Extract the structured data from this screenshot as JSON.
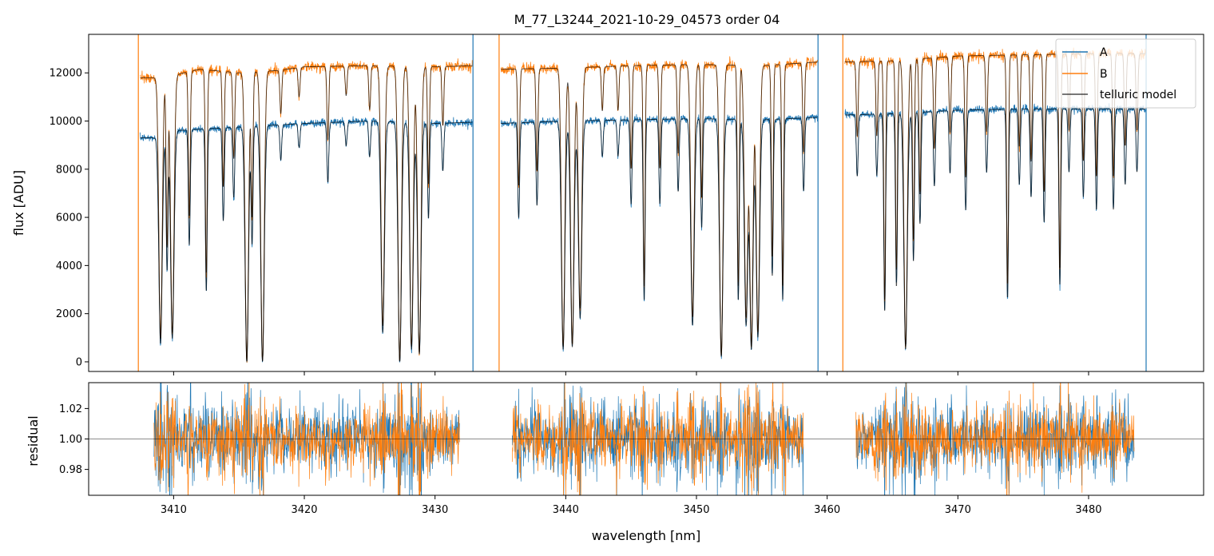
{
  "chart_data": [
    {
      "type": "line",
      "title": "M_77_L3244_2021-10-29_04573  order 04",
      "xlabel": "",
      "ylabel": "flux [ADU]",
      "xlim": [
        3403.5,
        3488.8
      ],
      "ylim": [
        -400,
        13600
      ],
      "yticks": [
        0,
        2000,
        4000,
        6000,
        8000,
        10000,
        12000
      ],
      "ytick_labels": [
        "0",
        "2000",
        "4000",
        "6000",
        "8000",
        "10000",
        "12000"
      ],
      "xticks": [
        3410,
        3420,
        3430,
        3440,
        3450,
        3460,
        3470,
        3480
      ],
      "legend": {
        "position": "top-right",
        "entries": [
          "A",
          "B",
          "telluric model"
        ]
      },
      "segments": [
        [
          3407.3,
          3432.9
        ],
        [
          3434.9,
          3459.3
        ],
        [
          3461.2,
          3484.4
        ]
      ],
      "continuum": {
        "A": [
          [
            3408.5,
            9300
          ],
          [
            3410,
            9600
          ],
          [
            3415,
            9750
          ],
          [
            3420,
            9900
          ],
          [
            3425,
            10000
          ],
          [
            3430,
            9900
          ],
          [
            3432.9,
            9950
          ],
          [
            3435,
            9900
          ],
          [
            3440,
            10000
          ],
          [
            3445,
            10050
          ],
          [
            3450,
            10100
          ],
          [
            3455,
            10050
          ],
          [
            3459.3,
            10150
          ],
          [
            3461.3,
            10250
          ],
          [
            3465,
            10300
          ],
          [
            3470,
            10450
          ],
          [
            3475,
            10500
          ],
          [
            3480,
            10500
          ],
          [
            3484.4,
            10500
          ]
        ],
        "B": [
          [
            3408.5,
            11800
          ],
          [
            3410,
            11900
          ],
          [
            3412,
            12150
          ],
          [
            3415,
            12000
          ],
          [
            3418,
            12100
          ],
          [
            3420,
            12250
          ],
          [
            3425,
            12300
          ],
          [
            3430,
            12250
          ],
          [
            3432.9,
            12300
          ],
          [
            3435,
            12150
          ],
          [
            3440,
            12200
          ],
          [
            3445,
            12300
          ],
          [
            3450,
            12350
          ],
          [
            3455,
            12300
          ],
          [
            3459.3,
            12450
          ],
          [
            3461.3,
            12450
          ],
          [
            3465,
            12500
          ],
          [
            3470,
            12700
          ],
          [
            3475,
            12750
          ],
          [
            3480,
            12800
          ],
          [
            3484.4,
            12800
          ]
        ]
      },
      "absorption_lines": [
        [
          3409.0,
          0.08
        ],
        [
          3409.5,
          0.4
        ],
        [
          3409.9,
          0.1
        ],
        [
          3411.2,
          0.5
        ],
        [
          3412.5,
          0.3
        ],
        [
          3413.8,
          0.6
        ],
        [
          3414.6,
          0.7
        ],
        [
          3415.6,
          0.0
        ],
        [
          3416.0,
          0.5
        ],
        [
          3416.8,
          0.0
        ],
        [
          3418.2,
          0.85
        ],
        [
          3419.6,
          0.9
        ],
        [
          3421.8,
          0.75
        ],
        [
          3423.2,
          0.9
        ],
        [
          3425.0,
          0.85
        ],
        [
          3426.0,
          0.12
        ],
        [
          3427.3,
          0.0
        ],
        [
          3428.2,
          0.05
        ],
        [
          3428.8,
          0.03
        ],
        [
          3429.5,
          0.6
        ],
        [
          3430.6,
          0.8
        ],
        [
          3436.4,
          0.6
        ],
        [
          3437.8,
          0.65
        ],
        [
          3439.8,
          0.05
        ],
        [
          3440.5,
          0.06
        ],
        [
          3441.1,
          0.18
        ],
        [
          3442.8,
          0.85
        ],
        [
          3444.0,
          0.85
        ],
        [
          3445.0,
          0.65
        ],
        [
          3446.0,
          0.25
        ],
        [
          3447.2,
          0.65
        ],
        [
          3448.6,
          0.7
        ],
        [
          3449.7,
          0.15
        ],
        [
          3450.4,
          0.55
        ],
        [
          3451.9,
          0.02
        ],
        [
          3453.2,
          0.25
        ],
        [
          3453.8,
          0.15
        ],
        [
          3454.2,
          0.05
        ],
        [
          3454.7,
          0.1
        ],
        [
          3455.8,
          0.35
        ],
        [
          3456.6,
          0.25
        ],
        [
          3458.2,
          0.7
        ],
        [
          3462.3,
          0.75
        ],
        [
          3463.8,
          0.75
        ],
        [
          3464.4,
          0.2
        ],
        [
          3465.3,
          0.3
        ],
        [
          3466.0,
          0.05
        ],
        [
          3466.6,
          0.4
        ],
        [
          3467.1,
          0.55
        ],
        [
          3468.2,
          0.7
        ],
        [
          3469.4,
          0.75
        ],
        [
          3470.6,
          0.6
        ],
        [
          3472.2,
          0.75
        ],
        [
          3473.8,
          0.25
        ],
        [
          3474.7,
          0.7
        ],
        [
          3475.6,
          0.65
        ],
        [
          3476.6,
          0.55
        ],
        [
          3477.8,
          0.3
        ],
        [
          3478.5,
          0.75
        ],
        [
          3479.6,
          0.65
        ],
        [
          3480.6,
          0.6
        ],
        [
          3481.9,
          0.6
        ],
        [
          3482.8,
          0.7
        ],
        [
          3483.7,
          0.75
        ]
      ],
      "series": [
        {
          "name": "A",
          "color": "#1f77b4"
        },
        {
          "name": "B",
          "color": "#ff7f0e"
        },
        {
          "name": "telluric model",
          "color": "#000000"
        }
      ]
    },
    {
      "type": "line",
      "title": "",
      "xlabel": "wavelength [nm]",
      "ylabel": "residual",
      "xlim": [
        3403.5,
        3488.8
      ],
      "ylim": [
        0.963,
        1.037
      ],
      "yticks": [
        0.98,
        1.0,
        1.02
      ],
      "ytick_labels": [
        "0.98",
        "1.00",
        "1.02"
      ],
      "xticks": [
        3410,
        3420,
        3430,
        3440,
        3450,
        3460,
        3470,
        3480
      ],
      "xtick_labels": [
        "3410",
        "3420",
        "3430",
        "3440",
        "3450",
        "3460",
        "3470",
        "3480"
      ],
      "reference_line": 1.0,
      "segments": [
        [
          3408.5,
          3431.9
        ],
        [
          3435.9,
          3458.2
        ],
        [
          3462.2,
          3483.5
        ]
      ],
      "noise_sigma": 0.01,
      "series": [
        {
          "name": "A",
          "color": "#1f77b4"
        },
        {
          "name": "B",
          "color": "#ff7f0e"
        }
      ]
    }
  ]
}
